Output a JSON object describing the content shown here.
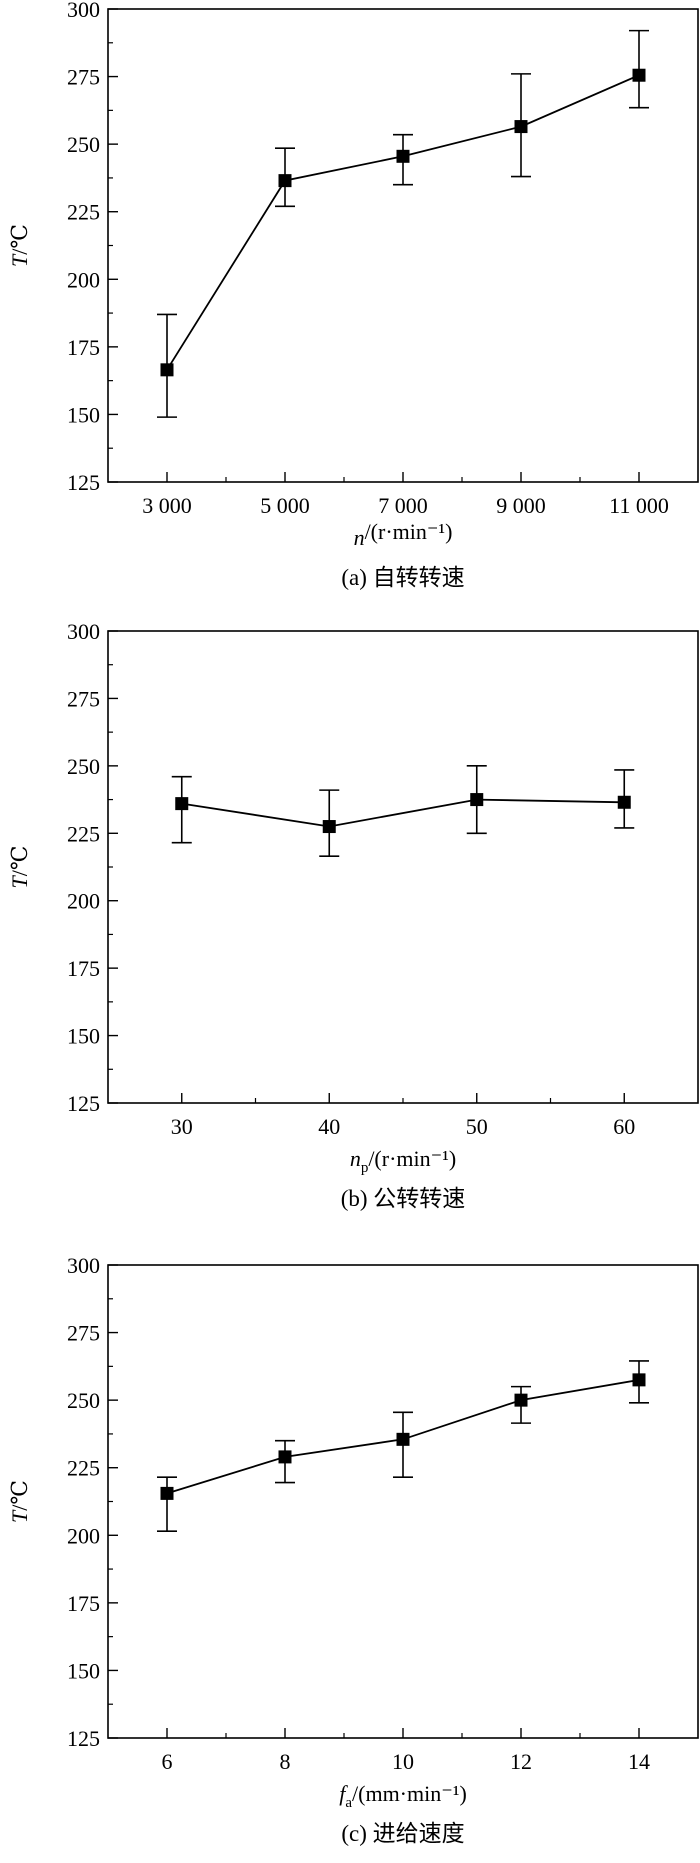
{
  "chart_data": [
    {
      "type": "line",
      "error_bars": true,
      "categories": [
        "3 000",
        "5 000",
        "7 000",
        "9 000",
        "11 000"
      ],
      "x": [
        3000,
        5000,
        7000,
        9000,
        11000
      ],
      "xlim": [
        2000,
        12000
      ],
      "x_minor_ticks": [
        4000,
        6000,
        8000,
        10000
      ],
      "series": [
        {
          "values": [
            166.5,
            236.5,
            245.5,
            256.5,
            275.5
          ],
          "err_low": [
            149,
            227,
            235,
            238,
            263.5
          ],
          "err_high": [
            187,
            248.5,
            253.5,
            276,
            292
          ]
        }
      ],
      "ylim": [
        125,
        300
      ],
      "yticks": [
        125,
        150,
        175,
        200,
        225,
        250,
        275,
        300
      ],
      "ylabel": {
        "ital": "T",
        "rest": "/℃"
      },
      "xlabel": {
        "ital": "n",
        "sub": "",
        "rest": "/(r·min⁻¹)"
      },
      "caption": "(a) 自转转速",
      "grid": false,
      "legend": "none"
    },
    {
      "type": "line",
      "error_bars": true,
      "categories": [
        "30",
        "40",
        "50",
        "60"
      ],
      "x": [
        30,
        40,
        50,
        60
      ],
      "xlim": [
        25,
        65
      ],
      "x_minor_ticks": [
        35,
        45,
        55
      ],
      "series": [
        {
          "values": [
            236,
            227.5,
            237.5,
            236.5
          ],
          "err_low": [
            221.5,
            216.5,
            225,
            227
          ],
          "err_high": [
            246,
            241,
            250,
            248.5
          ]
        }
      ],
      "ylim": [
        125,
        300
      ],
      "yticks": [
        125,
        150,
        175,
        200,
        225,
        250,
        275,
        300
      ],
      "ylabel": {
        "ital": "T",
        "rest": "/℃"
      },
      "xlabel": {
        "ital": "n",
        "sub": "p",
        "rest": "/(r·min⁻¹)"
      },
      "caption": "(b) 公转转速",
      "grid": false,
      "legend": "none"
    },
    {
      "type": "line",
      "error_bars": true,
      "categories": [
        "6",
        "8",
        "10",
        "12",
        "14"
      ],
      "x": [
        6,
        8,
        10,
        12,
        14
      ],
      "xlim": [
        5,
        15
      ],
      "x_minor_ticks": [
        7,
        9,
        11,
        13
      ],
      "series": [
        {
          "values": [
            215.5,
            229,
            235.5,
            250,
            257.5
          ],
          "err_low": [
            201.5,
            219.5,
            221.5,
            241.5,
            249
          ],
          "err_high": [
            221.5,
            235,
            245.5,
            255,
            264.5
          ]
        }
      ],
      "ylim": [
        125,
        300
      ],
      "yticks": [
        125,
        150,
        175,
        200,
        225,
        250,
        275,
        300
      ],
      "ylabel": {
        "ital": "T",
        "rest": "/℃"
      },
      "xlabel": {
        "ital": "f",
        "sub": "a",
        "rest": "/(mm·min⁻¹)"
      },
      "caption": "(c) 进给速度",
      "grid": false,
      "legend": "none"
    }
  ]
}
